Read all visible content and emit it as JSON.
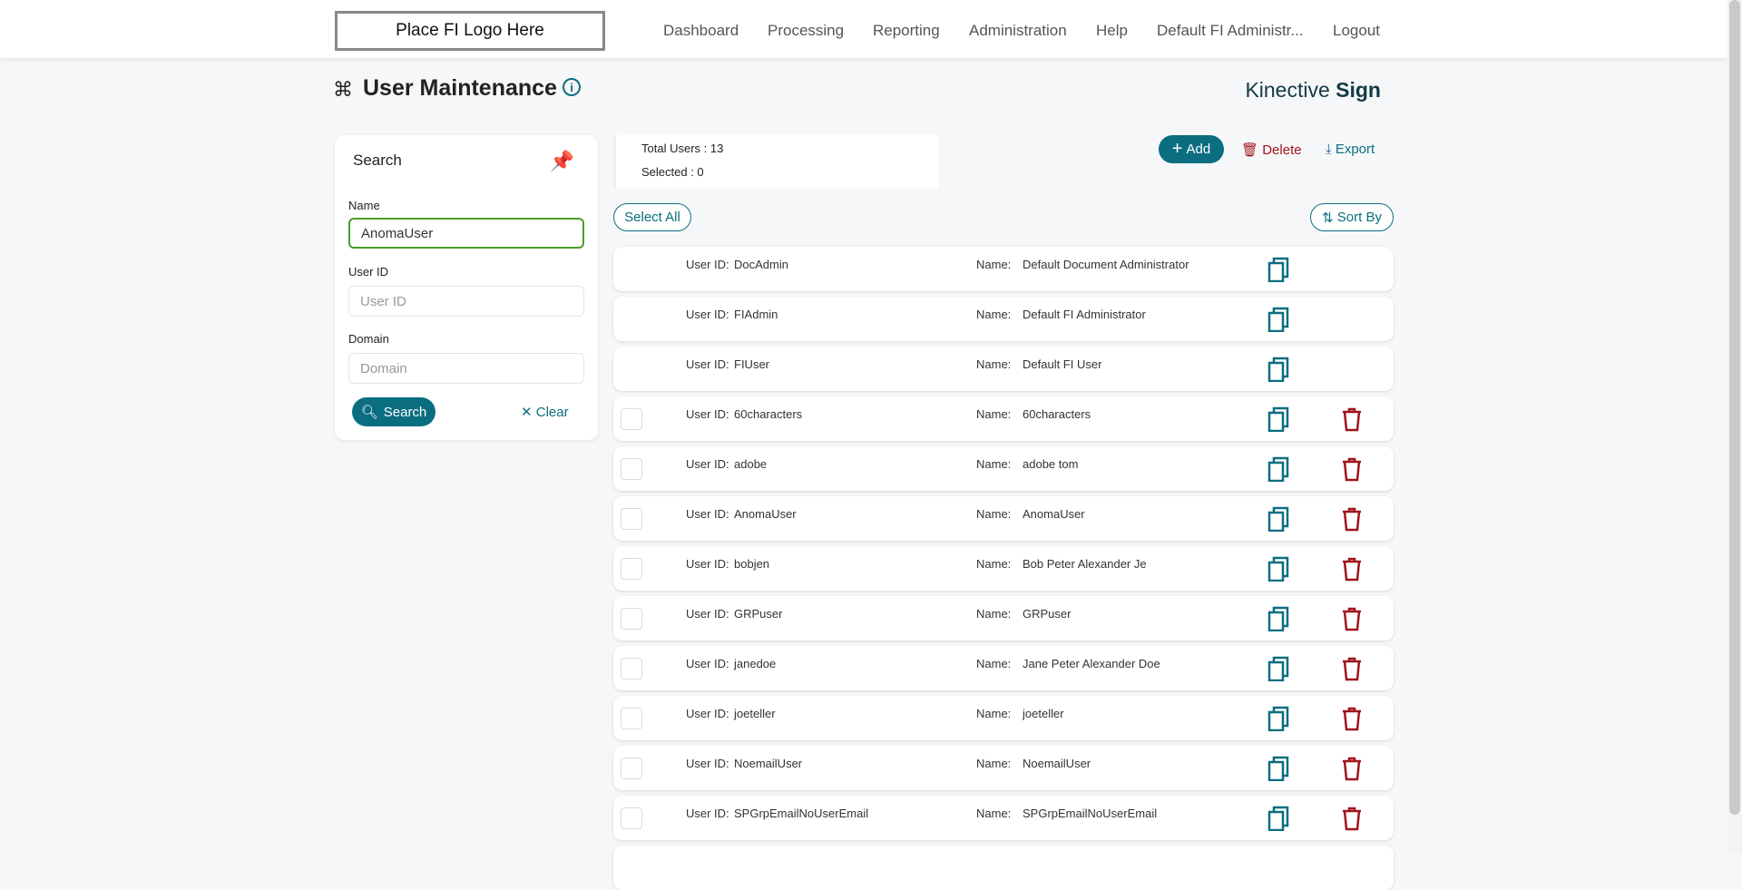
{
  "header": {
    "logo": "Place FI Logo Here",
    "nav": [
      "Dashboard",
      "Processing",
      "Reporting",
      "Administration",
      "Help",
      "Default FI Administr...",
      "Logout"
    ]
  },
  "page": {
    "title": "User Maintenance",
    "brand_light": "Kinective",
    "brand_bold": "Sign"
  },
  "search": {
    "title": "Search",
    "name_label": "Name",
    "name_value": "AnomaUser",
    "userid_label": "User ID",
    "userid_placeholder": "User ID",
    "domain_label": "Domain",
    "domain_placeholder": "Domain",
    "search_button": "Search",
    "clear_button": "Clear"
  },
  "stats": {
    "total": "Total Users : 13",
    "selected": "Selected : 0"
  },
  "toolbar": {
    "add": "Add",
    "delete": "Delete",
    "export": "Export",
    "select_all": "Select All",
    "sort_by": "Sort By"
  },
  "labels": {
    "user_id": "User ID:",
    "name": "Name:"
  },
  "colors": {
    "accent": "#0b6e80",
    "danger": "#a0141c",
    "focus": "#4a9c2c"
  },
  "users": [
    {
      "id": "DocAdmin",
      "name": "Default Document Administrator",
      "deletable": false
    },
    {
      "id": "FIAdmin",
      "name": "Default FI Administrator",
      "deletable": false
    },
    {
      "id": "FIUser",
      "name": "Default FI User",
      "deletable": false
    },
    {
      "id": "60characters",
      "name": "60characters",
      "deletable": true
    },
    {
      "id": "adobe",
      "name": "adobe tom",
      "deletable": true
    },
    {
      "id": "AnomaUser",
      "name": "AnomaUser",
      "deletable": true
    },
    {
      "id": "bobjen",
      "name": "Bob Peter Alexander Je",
      "deletable": true
    },
    {
      "id": "GRPuser",
      "name": "GRPuser",
      "deletable": true
    },
    {
      "id": "janedoe",
      "name": "Jane Peter Alexander Doe",
      "deletable": true
    },
    {
      "id": "joeteller",
      "name": "joeteller",
      "deletable": true
    },
    {
      "id": "NoemailUser",
      "name": "NoemailUser",
      "deletable": true
    },
    {
      "id": "SPGrpEmailNoUserEmail",
      "name": "SPGrpEmailNoUserEmail",
      "deletable": true
    }
  ]
}
